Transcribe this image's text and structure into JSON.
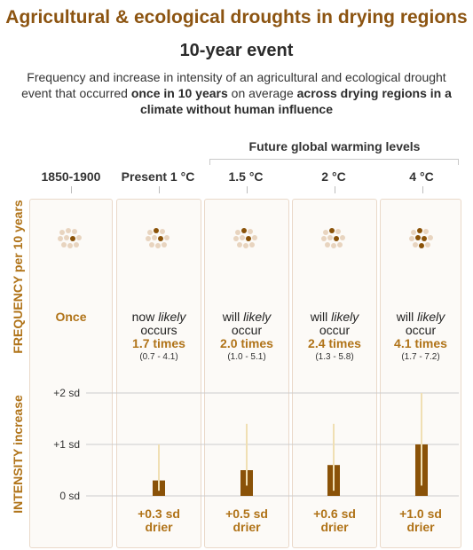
{
  "title": "Agricultural & ecological droughts in drying regions",
  "subtitle": "10-year event",
  "description": {
    "part1": "Frequency and increase in intensity of an agricultural and ecological drought event that occurred ",
    "bold1": "once in 10 years",
    "part2": " on average ",
    "bold2": "across drying regions in a climate without human influence"
  },
  "future_label": "Future global warming levels",
  "frequency_axis_label": "FREQUENCY per 10 years",
  "intensity_axis_label": "INTENSITY increase",
  "colors": {
    "accent": "#b07318",
    "bar": "#8a5208",
    "whisker": "#f0dfb3",
    "dot_light": "#e8d4bf",
    "dot_dark": "#8a5208",
    "panel_border": "#ead9c9"
  },
  "columns": [
    {
      "header": "1850-1900",
      "frequency": {
        "once": "Once"
      }
    },
    {
      "header": "Present 1 °C",
      "frequency": {
        "prefix": "now",
        "likely": "likely",
        "verb": "occurs",
        "value": "1.7 times",
        "range": "(0.7 - 4.1)"
      },
      "intensity": {
        "label": "+0.3 sd",
        "unit": "drier"
      }
    },
    {
      "header": "1.5 °C",
      "frequency": {
        "prefix": "will",
        "likely": "likely",
        "verb": "occur",
        "value": "2.0 times",
        "range": "(1.0 - 5.1)"
      },
      "intensity": {
        "label": "+0.5 sd",
        "unit": "drier"
      }
    },
    {
      "header": "2 °C",
      "frequency": {
        "prefix": "will",
        "likely": "likely",
        "verb": "occur",
        "value": "2.4 times",
        "range": "(1.3 - 5.8)"
      },
      "intensity": {
        "label": "+0.6 sd",
        "unit": "drier"
      }
    },
    {
      "header": "4 °C",
      "frequency": {
        "prefix": "will",
        "likely": "likely",
        "verb": "occur",
        "value": "4.1 times",
        "range": "(1.7 - 7.2)"
      },
      "intensity": {
        "label": "+1.0 sd",
        "unit": "drier"
      }
    }
  ],
  "chart_data": {
    "type": "bar",
    "categories": [
      "Present 1 °C",
      "1.5 °C",
      "2 °C",
      "4 °C"
    ],
    "values": [
      0.3,
      0.5,
      0.6,
      1.0
    ],
    "error_low": [
      0.1,
      0.2,
      0.1,
      0.2
    ],
    "error_high": [
      1.0,
      1.4,
      1.4,
      2.0
    ],
    "ylabel": "INTENSITY increase",
    "ytick_labels": [
      "+2 sd",
      "+1 sd",
      "0 sd"
    ],
    "ytick_values": [
      2,
      1,
      0
    ],
    "ylim": [
      0,
      2
    ],
    "frequency_filled_dots": [
      1,
      1.7,
      2.0,
      2.4,
      4.1
    ],
    "frequency_total_dots": 10
  }
}
